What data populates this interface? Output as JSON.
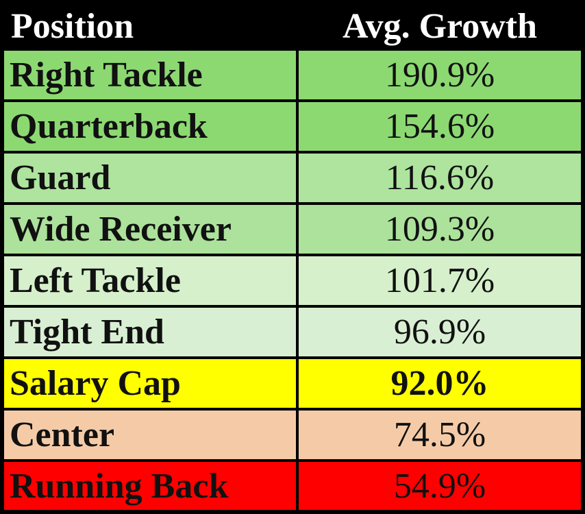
{
  "table": {
    "columns": [
      "Position",
      "Avg. Growth"
    ],
    "rows": [
      {
        "position": "Right Tackle",
        "growth": "190.9%",
        "bg": "#8CD972"
      },
      {
        "position": "Quarterback",
        "growth": "154.6%",
        "bg": "#8CD972"
      },
      {
        "position": "Guard",
        "growth": "116.6%",
        "bg": "#AEE49E"
      },
      {
        "position": "Wide Receiver",
        "growth": "109.3%",
        "bg": "#ACE29B"
      },
      {
        "position": "Left Tackle",
        "growth": "101.7%",
        "bg": "#D5F0CB"
      },
      {
        "position": "Tight End",
        "growth": "96.9%",
        "bg": "#D9EFD3"
      },
      {
        "position": "Salary Cap",
        "growth": "92.0%",
        "bg": "#FFFF00",
        "emphasis": true
      },
      {
        "position": "Center",
        "growth": "74.5%",
        "bg": "#F5CBA7"
      },
      {
        "position": "Running Back",
        "growth": "54.9%",
        "bg": "#FF0000"
      }
    ],
    "colors": {
      "header_bg": "#000000",
      "header_text": "#FFFFFF",
      "border": "#000000",
      "text": "#111111"
    }
  },
  "chart_data": {
    "type": "table",
    "title": "",
    "columns": [
      "Position",
      "Avg. Growth"
    ],
    "categories": [
      "Right Tackle",
      "Quarterback",
      "Guard",
      "Wide Receiver",
      "Left Tackle",
      "Tight End",
      "Salary Cap",
      "Center",
      "Running Back"
    ],
    "values": [
      190.9,
      154.6,
      116.6,
      109.3,
      101.7,
      96.9,
      92.0,
      74.5,
      54.9
    ],
    "value_unit": "%",
    "layout_hints": {
      "highlight_row": "Salary Cap",
      "color_scale": "green(high) to red(low), yellow benchmark row",
      "gridlines": true
    }
  }
}
